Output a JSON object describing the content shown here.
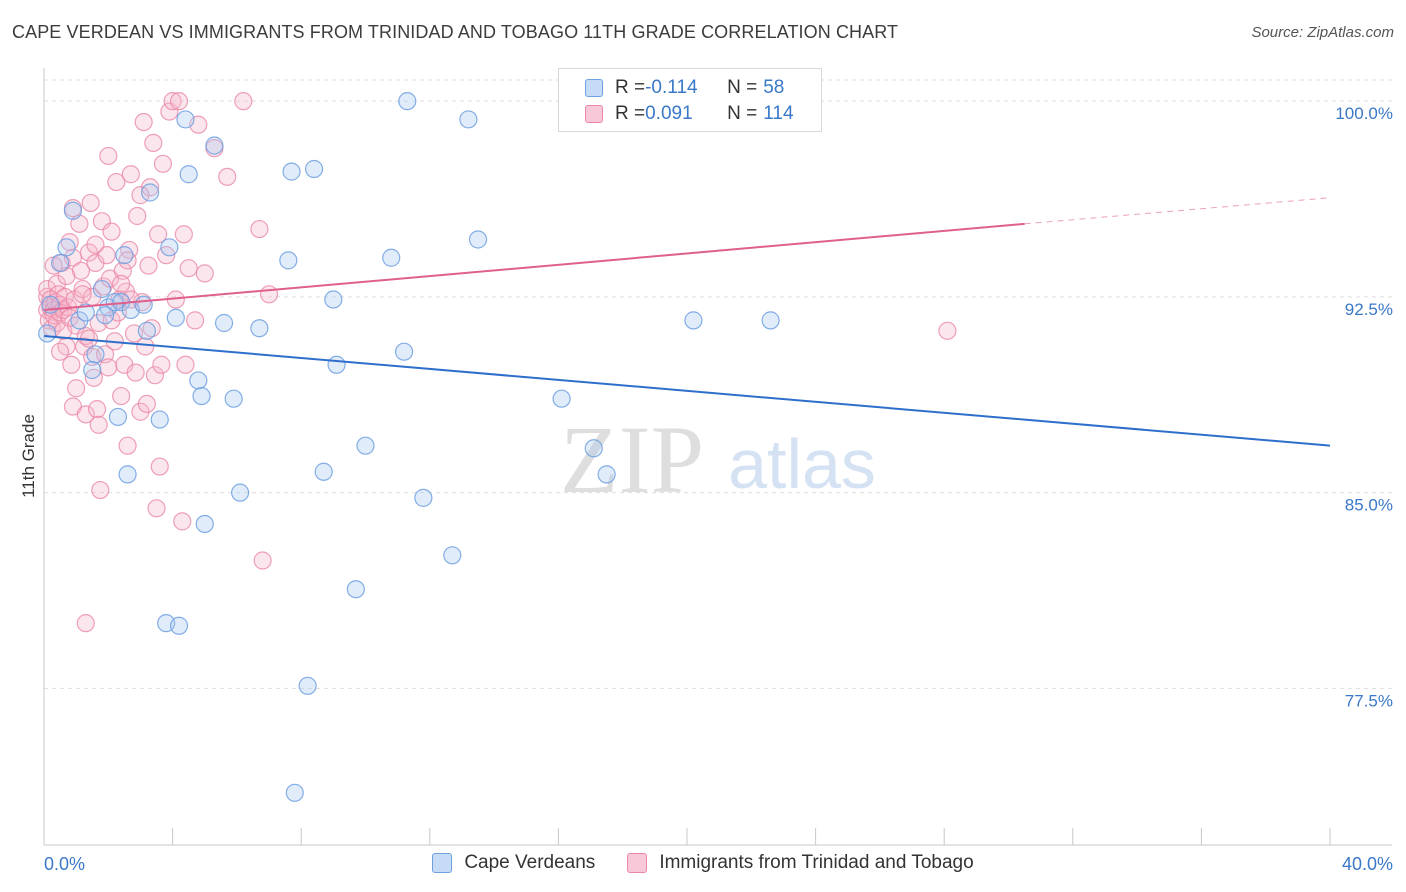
{
  "header": {
    "title": "CAPE VERDEAN VS IMMIGRANTS FROM TRINIDAD AND TOBAGO 11TH GRADE CORRELATION CHART",
    "source": "Source: ZipAtlas.com"
  },
  "watermark": {
    "zip": "ZIP",
    "atlas": "atlas"
  },
  "legend": {
    "rows": [
      {
        "r_label": "R = ",
        "r_value": "-0.114",
        "n_label": "N = ",
        "n_value": "58"
      },
      {
        "r_label": "R = ",
        "r_value": "0.091",
        "n_label": "N = ",
        "n_value": "114"
      }
    ]
  },
  "colors": {
    "blue_fill": "#aac9f2",
    "blue_stroke": "#6fa0e0",
    "blue_line": "#2f6fcc",
    "pink_fill": "#f6b8cc",
    "pink_stroke": "#ea88a8",
    "pink_line": "#e0608c",
    "axis_label": "#3a78c8",
    "grid": "#dddddd"
  },
  "chart_data": {
    "type": "scatter",
    "title": "CAPE VERDEAN VS IMMIGRANTS FROM TRINIDAD AND TOBAGO 11TH GRADE CORRELATION CHART",
    "xlabel": "",
    "ylabel": "11th Grade",
    "xlim": [
      0,
      40
    ],
    "ylim": [
      71.5,
      101.5
    ],
    "x_tick_labels": [
      "0.0%",
      "40.0%"
    ],
    "y_ticks": [
      100.0,
      92.5,
      85.0,
      77.5
    ],
    "y_tick_labels": [
      "100.0%",
      "92.5%",
      "85.0%",
      "77.5%"
    ],
    "grid": true,
    "legend_position": "bottom",
    "series": [
      {
        "name": "Cape Verdeans",
        "trend": {
          "x": [
            0,
            40
          ],
          "y": [
            91.0,
            86.8
          ]
        },
        "points": [
          [
            0.1,
            91.1
          ],
          [
            0.5,
            93.8
          ],
          [
            0.7,
            94.4
          ],
          [
            0.9,
            95.8
          ],
          [
            1.1,
            91.6
          ],
          [
            1.3,
            91.9
          ],
          [
            1.5,
            89.7
          ],
          [
            1.6,
            90.3
          ],
          [
            1.8,
            92.8
          ],
          [
            2.0,
            92.1
          ],
          [
            2.2,
            92.3
          ],
          [
            2.3,
            87.9
          ],
          [
            2.4,
            92.3
          ],
          [
            2.5,
            94.1
          ],
          [
            2.6,
            85.7
          ],
          [
            2.7,
            92.0
          ],
          [
            3.1,
            92.2
          ],
          [
            3.2,
            91.2
          ],
          [
            3.3,
            96.5
          ],
          [
            3.6,
            87.8
          ],
          [
            3.8,
            80.0
          ],
          [
            3.9,
            94.4
          ],
          [
            4.1,
            91.7
          ],
          [
            4.2,
            79.9
          ],
          [
            4.4,
            99.3
          ],
          [
            4.5,
            97.2
          ],
          [
            4.8,
            89.3
          ],
          [
            4.9,
            88.7
          ],
          [
            5.0,
            83.8
          ],
          [
            5.3,
            98.3
          ],
          [
            5.6,
            91.5
          ],
          [
            5.9,
            88.6
          ],
          [
            6.1,
            85.0
          ],
          [
            6.7,
            91.3
          ],
          [
            7.6,
            93.9
          ],
          [
            7.7,
            97.3
          ],
          [
            8.2,
            77.6
          ],
          [
            8.4,
            97.4
          ],
          [
            7.8,
            73.5
          ],
          [
            8.7,
            85.8
          ],
          [
            9.0,
            92.4
          ],
          [
            9.1,
            89.9
          ],
          [
            9.7,
            81.3
          ],
          [
            10.0,
            86.8
          ],
          [
            10.8,
            94.0
          ],
          [
            11.2,
            90.4
          ],
          [
            11.3,
            100.0
          ],
          [
            11.8,
            84.8
          ],
          [
            12.7,
            82.6
          ],
          [
            13.2,
            99.3
          ],
          [
            13.5,
            94.7
          ],
          [
            16.1,
            88.6
          ],
          [
            17.1,
            86.7
          ],
          [
            17.5,
            85.7
          ],
          [
            20.2,
            91.6
          ],
          [
            22.6,
            91.6
          ],
          [
            0.2,
            92.2
          ],
          [
            1.9,
            91.8
          ]
        ]
      },
      {
        "name": "Immigrants from Trinidad and Tobago",
        "trend": {
          "x": [
            0,
            30.5
          ],
          "y": [
            92.0,
            95.3
          ],
          "dash_x": [
            30.5,
            40
          ],
          "dash_y": [
            95.3,
            96.3
          ]
        },
        "points": [
          [
            0.1,
            92.0
          ],
          [
            0.1,
            92.5
          ],
          [
            0.1,
            92.8
          ],
          [
            0.15,
            91.6
          ],
          [
            0.2,
            92.4
          ],
          [
            0.2,
            92.1
          ],
          [
            0.25,
            91.3
          ],
          [
            0.3,
            92.0
          ],
          [
            0.3,
            91.8
          ],
          [
            0.35,
            92.3
          ],
          [
            0.4,
            93.0
          ],
          [
            0.4,
            91.5
          ],
          [
            0.45,
            92.6
          ],
          [
            0.5,
            92.2
          ],
          [
            0.5,
            91.9
          ],
          [
            0.55,
            93.8
          ],
          [
            0.6,
            92.0
          ],
          [
            0.6,
            91.2
          ],
          [
            0.65,
            92.5
          ],
          [
            0.7,
            90.6
          ],
          [
            0.7,
            93.3
          ],
          [
            0.75,
            92.1
          ],
          [
            0.8,
            91.7
          ],
          [
            0.85,
            89.9
          ],
          [
            0.9,
            88.3
          ],
          [
            0.9,
            94.0
          ],
          [
            0.95,
            92.4
          ],
          [
            1.0,
            91.4
          ],
          [
            1.0,
            89.0
          ],
          [
            1.1,
            95.3
          ],
          [
            1.15,
            93.5
          ],
          [
            1.2,
            92.8
          ],
          [
            1.25,
            90.6
          ],
          [
            1.3,
            91.0
          ],
          [
            1.3,
            88.0
          ],
          [
            1.4,
            94.2
          ],
          [
            1.45,
            96.1
          ],
          [
            1.5,
            92.5
          ],
          [
            1.5,
            90.2
          ],
          [
            1.55,
            89.4
          ],
          [
            1.6,
            93.8
          ],
          [
            1.65,
            88.2
          ],
          [
            1.7,
            91.5
          ],
          [
            1.7,
            87.6
          ],
          [
            1.75,
            85.1
          ],
          [
            1.8,
            95.4
          ],
          [
            1.85,
            92.9
          ],
          [
            1.9,
            90.3
          ],
          [
            1.95,
            94.1
          ],
          [
            2.0,
            89.8
          ],
          [
            2.05,
            93.2
          ],
          [
            2.1,
            91.6
          ],
          [
            2.2,
            90.8
          ],
          [
            2.25,
            96.9
          ],
          [
            2.3,
            91.9
          ],
          [
            2.35,
            92.4
          ],
          [
            2.4,
            88.7
          ],
          [
            2.45,
            93.5
          ],
          [
            2.5,
            89.9
          ],
          [
            2.55,
            92.7
          ],
          [
            2.6,
            86.8
          ],
          [
            2.65,
            94.3
          ],
          [
            2.7,
            97.2
          ],
          [
            2.8,
            91.1
          ],
          [
            2.85,
            89.6
          ],
          [
            2.9,
            95.6
          ],
          [
            3.0,
            88.1
          ],
          [
            3.05,
            92.3
          ],
          [
            3.1,
            99.2
          ],
          [
            3.15,
            90.6
          ],
          [
            3.25,
            93.7
          ],
          [
            3.3,
            96.7
          ],
          [
            3.35,
            91.3
          ],
          [
            3.4,
            98.4
          ],
          [
            3.45,
            89.5
          ],
          [
            3.5,
            84.4
          ],
          [
            3.55,
            94.9
          ],
          [
            3.6,
            86.0
          ],
          [
            3.65,
            89.9
          ],
          [
            3.7,
            97.6
          ],
          [
            3.8,
            94.1
          ],
          [
            3.9,
            99.6
          ],
          [
            4.0,
            100.0
          ],
          [
            4.1,
            92.4
          ],
          [
            4.2,
            100.0
          ],
          [
            4.3,
            83.9
          ],
          [
            4.35,
            94.9
          ],
          [
            4.4,
            89.9
          ],
          [
            4.5,
            93.6
          ],
          [
            4.7,
            91.6
          ],
          [
            4.8,
            99.1
          ],
          [
            5.0,
            93.4
          ],
          [
            5.3,
            98.2
          ],
          [
            5.7,
            97.1
          ],
          [
            6.2,
            100.0
          ],
          [
            6.7,
            95.1
          ],
          [
            6.8,
            82.4
          ],
          [
            7.0,
            92.6
          ],
          [
            1.3,
            80.0
          ],
          [
            28.1,
            91.2
          ],
          [
            0.3,
            93.7
          ],
          [
            0.9,
            95.9
          ],
          [
            1.6,
            94.5
          ],
          [
            2.1,
            95.0
          ],
          [
            2.4,
            93.0
          ],
          [
            3.0,
            96.4
          ],
          [
            1.2,
            92.6
          ],
          [
            0.8,
            94.6
          ],
          [
            2.7,
            92.4
          ],
          [
            3.2,
            88.4
          ],
          [
            1.4,
            90.9
          ],
          [
            0.5,
            90.4
          ],
          [
            2.0,
            97.9
          ],
          [
            2.6,
            93.9
          ]
        ]
      }
    ]
  }
}
